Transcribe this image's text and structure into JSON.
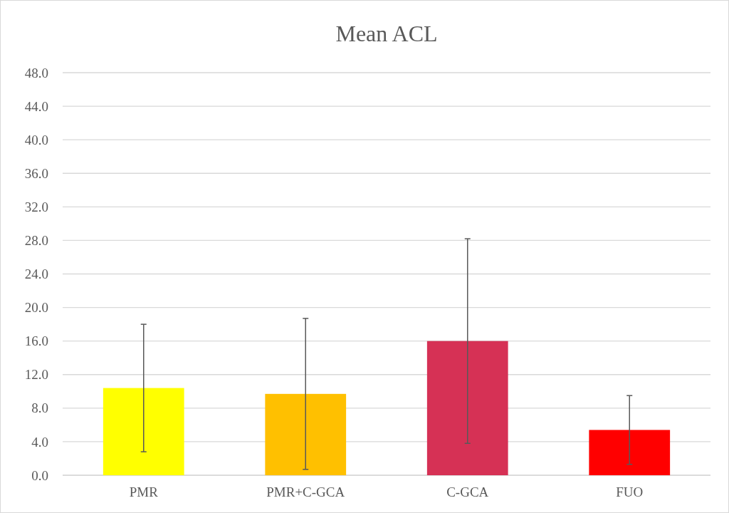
{
  "chart_data": {
    "type": "bar",
    "title": "Mean ACL",
    "categories": [
      "PMR",
      "PMR+C-GCA",
      "C-GCA",
      "FUO"
    ],
    "values": [
      10.4,
      9.7,
      16.0,
      5.4
    ],
    "colors": [
      "#ffff00",
      "#ffc000",
      "#d63155",
      "#ff0000"
    ],
    "errors": [
      7.6,
      9.0,
      12.2,
      4.1
    ],
    "ylim": [
      0,
      48
    ],
    "yticks": [
      {
        "value": 0,
        "label": "0.0"
      },
      {
        "value": 4,
        "label": "4.0"
      },
      {
        "value": 8,
        "label": "8.0"
      },
      {
        "value": 12,
        "label": "12.0"
      },
      {
        "value": 16,
        "label": "16.0"
      },
      {
        "value": 20,
        "label": "20.0"
      },
      {
        "value": 24,
        "label": "24.0"
      },
      {
        "value": 28,
        "label": "28.0"
      },
      {
        "value": 32,
        "label": "32.0"
      },
      {
        "value": 36,
        "label": "36.0"
      },
      {
        "value": 40,
        "label": "40.0"
      },
      {
        "value": 44,
        "label": "44.0"
      },
      {
        "value": 48,
        "label": "48.0"
      }
    ],
    "grid": "y"
  }
}
